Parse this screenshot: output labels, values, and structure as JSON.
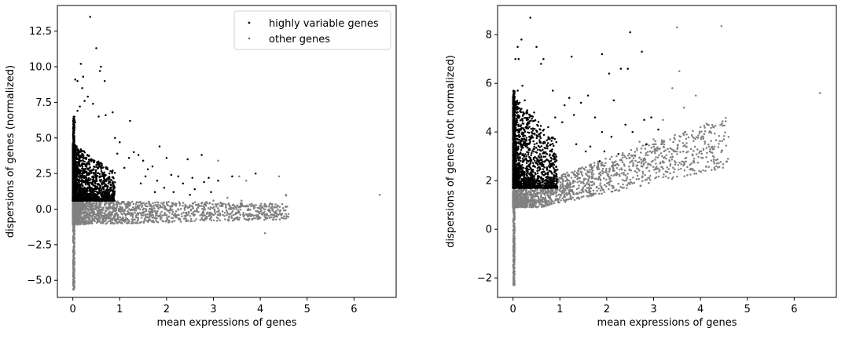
{
  "chart_data": [
    {
      "type": "scatter",
      "title": "",
      "xlabel": "mean expressions of genes",
      "ylabel": "dispersions of genes (normalized)",
      "xlim": [
        -0.33,
        6.9
      ],
      "ylim": [
        -6.2,
        14.3
      ],
      "xticks": [
        0,
        1,
        2,
        3,
        4,
        5,
        6
      ],
      "xtick_labels": [
        "0",
        "1",
        "2",
        "3",
        "4",
        "5",
        "6"
      ],
      "yticks": [
        -5.0,
        -2.5,
        0.0,
        2.5,
        5.0,
        7.5,
        10.0,
        12.5
      ],
      "ytick_labels": [
        "−5.0",
        "−2.5",
        "0.0",
        "2.5",
        "5.0",
        "7.5",
        "10.0",
        "12.5"
      ],
      "legend": {
        "position": "top-right",
        "entries": [
          "highly variable genes",
          "other genes"
        ]
      },
      "series": [
        {
          "name": "highly variable genes",
          "color": "#000000",
          "points": [
            [
              0.37,
              13.5
            ],
            [
              0.5,
              11.3
            ],
            [
              0.6,
              10.0
            ],
            [
              0.58,
              9.7
            ],
            [
              0.17,
              10.2
            ],
            [
              0.22,
              9.3
            ],
            [
              0.05,
              9.1
            ],
            [
              0.1,
              9.0
            ],
            [
              0.68,
              9.0
            ],
            [
              0.2,
              8.5
            ],
            [
              0.32,
              7.9
            ],
            [
              0.43,
              7.4
            ],
            [
              0.25,
              7.6
            ],
            [
              0.15,
              7.2
            ],
            [
              0.1,
              6.9
            ],
            [
              0.85,
              6.8
            ],
            [
              0.7,
              6.6
            ],
            [
              1.22,
              6.2
            ],
            [
              0.05,
              6.1
            ],
            [
              0.55,
              6.5
            ],
            [
              0.9,
              5.0
            ],
            [
              1.0,
              4.7
            ],
            [
              1.3,
              4.0
            ],
            [
              1.4,
              3.8
            ],
            [
              1.85,
              4.4
            ],
            [
              1.2,
              3.6
            ],
            [
              0.95,
              3.9
            ],
            [
              1.5,
              3.4
            ],
            [
              1.6,
              2.8
            ],
            [
              1.7,
              3.0
            ],
            [
              2.1,
              2.4
            ],
            [
              2.0,
              3.6
            ],
            [
              2.25,
              2.3
            ],
            [
              2.45,
              3.5
            ],
            [
              2.75,
              3.8
            ],
            [
              2.55,
              2.2
            ],
            [
              2.9,
              2.2
            ],
            [
              3.4,
              2.3
            ],
            [
              3.9,
              2.5
            ],
            [
              2.8,
              1.9
            ],
            [
              1.8,
              2.0
            ],
            [
              1.55,
              2.3
            ],
            [
              1.1,
              2.9
            ],
            [
              0.78,
              2.5
            ],
            [
              0.62,
              3.1
            ],
            [
              2.35,
              1.8
            ],
            [
              1.95,
              1.5
            ],
            [
              2.15,
              1.2
            ],
            [
              2.6,
              1.4
            ],
            [
              2.95,
              1.2
            ],
            [
              3.1,
              2.0
            ],
            [
              1.75,
              1.2
            ],
            [
              1.45,
              1.8
            ],
            [
              2.5,
              1.0
            ]
          ],
          "dense_cluster": {
            "x": [
              0.0,
              0.9
            ],
            "y": [
              0.6,
              4.6
            ],
            "count": 1900
          },
          "column": {
            "x": 0.02,
            "y": [
              0.6,
              6.5
            ],
            "count": 300
          }
        },
        {
          "name": "other genes",
          "color": "#808080",
          "points": [
            [
              6.55,
              1.0
            ],
            [
              4.1,
              -1.7
            ],
            [
              4.55,
              1.0
            ],
            [
              4.6,
              -0.35
            ],
            [
              4.4,
              2.3
            ],
            [
              4.55,
              0.95
            ],
            [
              3.1,
              3.4
            ],
            [
              3.55,
              2.3
            ],
            [
              3.7,
              2.0
            ],
            [
              3.3,
              0.8
            ],
            [
              3.0,
              0.6
            ],
            [
              4.0,
              -0.6
            ],
            [
              3.8,
              -0.5
            ],
            [
              2.6,
              -0.4
            ],
            [
              3.5,
              -0.3
            ],
            [
              3.75,
              0.0
            ],
            [
              4.25,
              -0.4
            ],
            [
              4.45,
              -0.35
            ],
            [
              4.05,
              -0.3
            ],
            [
              3.95,
              -0.7
            ],
            [
              2.85,
              0.5
            ],
            [
              3.2,
              -0.4
            ],
            [
              3.35,
              0.2
            ],
            [
              2.4,
              0.3
            ],
            [
              3.6,
              0.6
            ]
          ],
          "dense_band": {
            "x": [
              0.0,
              4.6
            ],
            "y": [
              -1.1,
              0.6
            ],
            "count": 1800
          },
          "column": {
            "x": 0.02,
            "y": [
              -5.7,
              0.6
            ],
            "count": 280
          }
        }
      ]
    },
    {
      "type": "scatter",
      "title": "",
      "xlabel": "mean expressions of genes",
      "ylabel": "dispersions of genes (not normalized)",
      "xlim": [
        -0.33,
        6.9
      ],
      "ylim": [
        -2.8,
        9.2
      ],
      "xticks": [
        0,
        1,
        2,
        3,
        4,
        5,
        6
      ],
      "xtick_labels": [
        "0",
        "1",
        "2",
        "3",
        "4",
        "5",
        "6"
      ],
      "yticks": [
        -2,
        0,
        2,
        4,
        6,
        8
      ],
      "ytick_labels": [
        "−2",
        "0",
        "2",
        "4",
        "6",
        "8"
      ],
      "series": [
        {
          "name": "highly variable genes",
          "color": "#000000",
          "points": [
            [
              0.37,
              8.7
            ],
            [
              0.18,
              7.8
            ],
            [
              0.1,
              7.5
            ],
            [
              0.05,
              7.0
            ],
            [
              0.12,
              7.0
            ],
            [
              0.5,
              7.5
            ],
            [
              0.6,
              6.8
            ],
            [
              0.65,
              7.0
            ],
            [
              1.25,
              7.1
            ],
            [
              1.9,
              7.2
            ],
            [
              2.5,
              8.1
            ],
            [
              2.75,
              7.3
            ],
            [
              2.3,
              6.6
            ],
            [
              2.45,
              6.6
            ],
            [
              2.05,
              6.4
            ],
            [
              1.6,
              5.5
            ],
            [
              1.45,
              5.2
            ],
            [
              1.2,
              5.4
            ],
            [
              0.85,
              5.7
            ],
            [
              0.2,
              5.9
            ],
            [
              0.25,
              5.3
            ],
            [
              0.1,
              5.7
            ],
            [
              2.15,
              5.3
            ],
            [
              1.1,
              5.1
            ],
            [
              2.8,
              4.5
            ],
            [
              2.4,
              4.3
            ],
            [
              2.55,
              4.0
            ],
            [
              2.95,
              4.6
            ],
            [
              3.1,
              4.1
            ],
            [
              2.85,
              3.5
            ],
            [
              1.9,
              4.0
            ],
            [
              1.75,
              4.6
            ],
            [
              1.3,
              4.7
            ],
            [
              1.05,
              4.4
            ],
            [
              2.1,
              3.8
            ],
            [
              2.25,
              3.1
            ],
            [
              1.65,
              3.4
            ],
            [
              1.55,
              3.2
            ],
            [
              1.95,
              3.2
            ],
            [
              1.85,
              2.8
            ],
            [
              0.9,
              4.6
            ],
            [
              0.75,
              4.2
            ],
            [
              0.55,
              3.9
            ],
            [
              0.45,
              4.8
            ],
            [
              1.35,
              3.5
            ]
          ],
          "dense_cluster": {
            "x": [
              0.0,
              0.95
            ],
            "y": [
              1.7,
              5.5
            ],
            "count": 1900
          },
          "column": {
            "x": 0.02,
            "y": [
              1.7,
              5.7
            ],
            "count": 300
          }
        },
        {
          "name": "other genes",
          "color": "#808080",
          "points": [
            [
              6.55,
              5.6
            ],
            [
              4.45,
              8.35
            ],
            [
              3.5,
              8.3
            ],
            [
              3.55,
              6.5
            ],
            [
              3.9,
              5.5
            ],
            [
              3.4,
              5.8
            ],
            [
              4.0,
              4.2
            ],
            [
              3.65,
              5.0
            ],
            [
              3.2,
              4.5
            ],
            [
              3.0,
              3.7
            ],
            [
              3.3,
              3.3
            ],
            [
              2.7,
              3.6
            ],
            [
              4.3,
              3.4
            ],
            [
              4.5,
              3.7
            ],
            [
              4.6,
              3.8
            ],
            [
              3.8,
              3.3
            ],
            [
              4.1,
              3.6
            ],
            [
              4.2,
              3.2
            ],
            [
              3.1,
              2.5
            ],
            [
              3.45,
              2.8
            ]
          ],
          "dense_band": {
            "x": [
              0.0,
              4.6
            ],
            "y": [
              0.9,
              3.6
            ],
            "count": 1800
          },
          "column": {
            "x": 0.02,
            "y": [
              -2.3,
              1.7
            ],
            "count": 280
          }
        }
      ]
    }
  ]
}
